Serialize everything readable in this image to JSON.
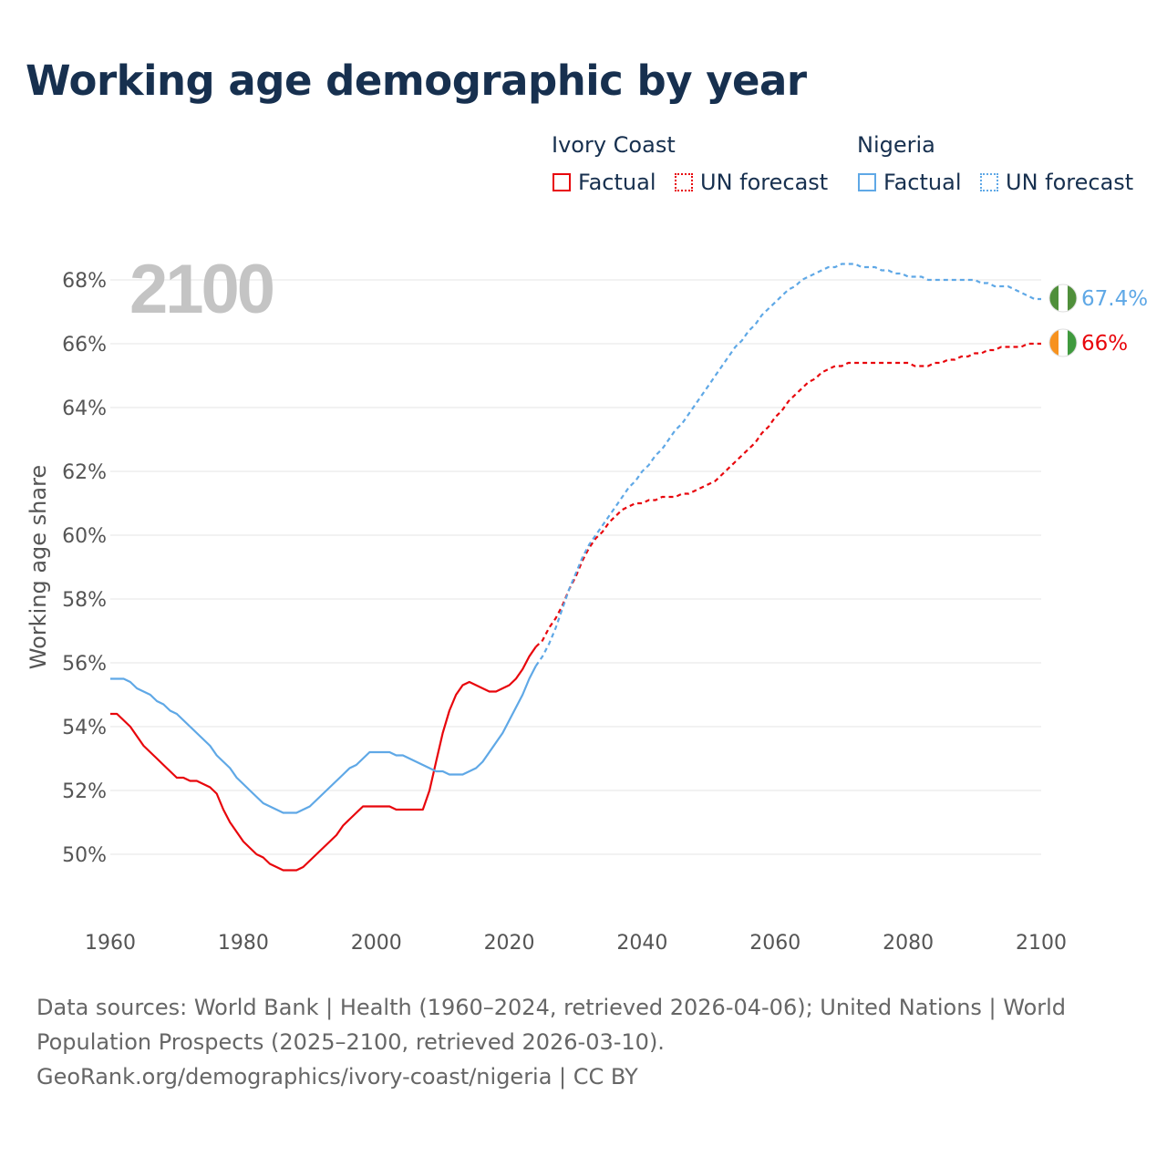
{
  "title": "Working age demographic by year",
  "legend": {
    "groups": [
      {
        "name": "Ivory Coast",
        "items": [
          "Factual",
          "UN forecast"
        ]
      },
      {
        "name": "Nigeria",
        "items": [
          "Factual",
          "UN forecast"
        ]
      }
    ]
  },
  "footer": {
    "line1": "Data sources: World Bank | Health (1960–2024, retrieved 2026-04-06); United Nations | World",
    "line2": "Population Prospects (2025–2100, retrieved 2026-03-10).",
    "line3": "GeoRank.org/demographics/ivory-coast/nigeria | CC BY"
  },
  "chart_data": {
    "type": "line",
    "title": "Working age demographic by year",
    "current_year_label": "2100",
    "xlabel": "",
    "ylabel": "Working age share",
    "xlim": [
      1960,
      2100
    ],
    "ylim": [
      48,
      69.5
    ],
    "x_ticks": [
      1960,
      1980,
      2000,
      2020,
      2040,
      2060,
      2080,
      2100
    ],
    "y_ticks": [
      50,
      52,
      54,
      56,
      58,
      60,
      62,
      64,
      66,
      68
    ],
    "y_tick_labels": [
      "50%",
      "52%",
      "54%",
      "56%",
      "58%",
      "60%",
      "62%",
      "64%",
      "66%",
      "68%"
    ],
    "grid": true,
    "colors": {
      "ivory_coast": "#e8060c",
      "nigeria": "#5fa8e6",
      "grid": "#e6e6e6",
      "axis_text": "#555555",
      "big_year": "#c4c4c4"
    },
    "series": [
      {
        "name": "Ivory Coast",
        "color": "#e8060c",
        "end_label": "66%",
        "flag": "ivory-coast-flag-icon",
        "factual": {
          "x": [
            1960,
            1961,
            1962,
            1963,
            1964,
            1965,
            1966,
            1967,
            1968,
            1969,
            1970,
            1971,
            1972,
            1973,
            1974,
            1975,
            1976,
            1977,
            1978,
            1979,
            1980,
            1981,
            1982,
            1983,
            1984,
            1985,
            1986,
            1987,
            1988,
            1989,
            1990,
            1991,
            1992,
            1993,
            1994,
            1995,
            1996,
            1997,
            1998,
            1999,
            2000,
            2001,
            2002,
            2003,
            2004,
            2005,
            2006,
            2007,
            2008,
            2009,
            2010,
            2011,
            2012,
            2013,
            2014,
            2015,
            2016,
            2017,
            2018,
            2019,
            2020,
            2021,
            2022,
            2023,
            2024
          ],
          "y": [
            54.4,
            54.4,
            54.2,
            54.0,
            53.7,
            53.4,
            53.2,
            53.0,
            52.8,
            52.6,
            52.4,
            52.4,
            52.3,
            52.3,
            52.2,
            52.1,
            51.9,
            51.4,
            51.0,
            50.7,
            50.4,
            50.2,
            50.0,
            49.9,
            49.7,
            49.6,
            49.5,
            49.5,
            49.5,
            49.6,
            49.8,
            50.0,
            50.2,
            50.4,
            50.6,
            50.9,
            51.1,
            51.3,
            51.5,
            51.5,
            51.5,
            51.5,
            51.5,
            51.4,
            51.4,
            51.4,
            51.4,
            51.4,
            52.0,
            52.9,
            53.8,
            54.5,
            55.0,
            55.3,
            55.4,
            55.3,
            55.2,
            55.1,
            55.1,
            55.2,
            55.3,
            55.5,
            55.8,
            56.2,
            56.5
          ]
        },
        "forecast": {
          "x": [
            2024,
            2025,
            2026,
            2027,
            2028,
            2029,
            2030,
            2031,
            2032,
            2033,
            2034,
            2035,
            2036,
            2037,
            2038,
            2039,
            2040,
            2041,
            2042,
            2043,
            2044,
            2045,
            2046,
            2047,
            2048,
            2049,
            2050,
            2051,
            2052,
            2053,
            2054,
            2055,
            2056,
            2057,
            2058,
            2059,
            2060,
            2061,
            2062,
            2063,
            2064,
            2065,
            2066,
            2067,
            2068,
            2069,
            2070,
            2071,
            2072,
            2073,
            2074,
            2075,
            2076,
            2077,
            2078,
            2079,
            2080,
            2081,
            2082,
            2083,
            2084,
            2085,
            2086,
            2087,
            2088,
            2089,
            2090,
            2091,
            2092,
            2093,
            2094,
            2095,
            2096,
            2097,
            2098,
            2099,
            2100
          ],
          "y": [
            56.5,
            56.7,
            57.1,
            57.4,
            57.8,
            58.3,
            58.7,
            59.2,
            59.6,
            59.9,
            60.1,
            60.4,
            60.6,
            60.8,
            60.9,
            61.0,
            61.0,
            61.1,
            61.1,
            61.2,
            61.2,
            61.2,
            61.3,
            61.3,
            61.4,
            61.5,
            61.6,
            61.7,
            61.9,
            62.1,
            62.3,
            62.5,
            62.7,
            62.9,
            63.2,
            63.4,
            63.7,
            63.9,
            64.2,
            64.4,
            64.6,
            64.8,
            64.9,
            65.1,
            65.2,
            65.3,
            65.3,
            65.4,
            65.4,
            65.4,
            65.4,
            65.4,
            65.4,
            65.4,
            65.4,
            65.4,
            65.4,
            65.3,
            65.3,
            65.3,
            65.4,
            65.4,
            65.5,
            65.5,
            65.6,
            65.6,
            65.7,
            65.7,
            65.8,
            65.8,
            65.9,
            65.9,
            65.9,
            65.9,
            66.0,
            66.0,
            66.0
          ]
        }
      },
      {
        "name": "Nigeria",
        "color": "#5fa8e6",
        "end_label": "67.4%",
        "flag": "nigeria-flag-icon",
        "factual": {
          "x": [
            1960,
            1961,
            1962,
            1963,
            1964,
            1965,
            1966,
            1967,
            1968,
            1969,
            1970,
            1971,
            1972,
            1973,
            1974,
            1975,
            1976,
            1977,
            1978,
            1979,
            1980,
            1981,
            1982,
            1983,
            1984,
            1985,
            1986,
            1987,
            1988,
            1989,
            1990,
            1991,
            1992,
            1993,
            1994,
            1995,
            1996,
            1997,
            1998,
            1999,
            2000,
            2001,
            2002,
            2003,
            2004,
            2005,
            2006,
            2007,
            2008,
            2009,
            2010,
            2011,
            2012,
            2013,
            2014,
            2015,
            2016,
            2017,
            2018,
            2019,
            2020,
            2021,
            2022,
            2023,
            2024
          ],
          "y": [
            55.5,
            55.5,
            55.5,
            55.4,
            55.2,
            55.1,
            55.0,
            54.8,
            54.7,
            54.5,
            54.4,
            54.2,
            54.0,
            53.8,
            53.6,
            53.4,
            53.1,
            52.9,
            52.7,
            52.4,
            52.2,
            52.0,
            51.8,
            51.6,
            51.5,
            51.4,
            51.3,
            51.3,
            51.3,
            51.4,
            51.5,
            51.7,
            51.9,
            52.1,
            52.3,
            52.5,
            52.7,
            52.8,
            53.0,
            53.2,
            53.2,
            53.2,
            53.2,
            53.1,
            53.1,
            53.0,
            52.9,
            52.8,
            52.7,
            52.6,
            52.6,
            52.5,
            52.5,
            52.5,
            52.6,
            52.7,
            52.9,
            53.2,
            53.5,
            53.8,
            54.2,
            54.6,
            55.0,
            55.5,
            55.9
          ]
        },
        "forecast": {
          "x": [
            2024,
            2025,
            2026,
            2027,
            2028,
            2029,
            2030,
            2031,
            2032,
            2033,
            2034,
            2035,
            2036,
            2037,
            2038,
            2039,
            2040,
            2041,
            2042,
            2043,
            2044,
            2045,
            2046,
            2047,
            2048,
            2049,
            2050,
            2051,
            2052,
            2053,
            2054,
            2055,
            2056,
            2057,
            2058,
            2059,
            2060,
            2061,
            2062,
            2063,
            2064,
            2065,
            2066,
            2067,
            2068,
            2069,
            2070,
            2071,
            2072,
            2073,
            2074,
            2075,
            2076,
            2077,
            2078,
            2079,
            2080,
            2081,
            2082,
            2083,
            2084,
            2085,
            2086,
            2087,
            2088,
            2089,
            2090,
            2091,
            2092,
            2093,
            2094,
            2095,
            2096,
            2097,
            2098,
            2099,
            2100
          ],
          "y": [
            55.9,
            56.2,
            56.6,
            57.1,
            57.7,
            58.3,
            58.8,
            59.3,
            59.7,
            60.0,
            60.3,
            60.6,
            60.9,
            61.2,
            61.5,
            61.7,
            62.0,
            62.2,
            62.5,
            62.7,
            63.0,
            63.3,
            63.5,
            63.8,
            64.1,
            64.4,
            64.7,
            65.0,
            65.3,
            65.6,
            65.9,
            66.1,
            66.4,
            66.6,
            66.9,
            67.1,
            67.3,
            67.5,
            67.7,
            67.8,
            68.0,
            68.1,
            68.2,
            68.3,
            68.4,
            68.4,
            68.5,
            68.5,
            68.5,
            68.4,
            68.4,
            68.4,
            68.3,
            68.3,
            68.2,
            68.2,
            68.1,
            68.1,
            68.1,
            68.0,
            68.0,
            68.0,
            68.0,
            68.0,
            68.0,
            68.0,
            68.0,
            67.9,
            67.9,
            67.8,
            67.8,
            67.8,
            67.7,
            67.6,
            67.5,
            67.4,
            67.4
          ]
        }
      }
    ]
  }
}
